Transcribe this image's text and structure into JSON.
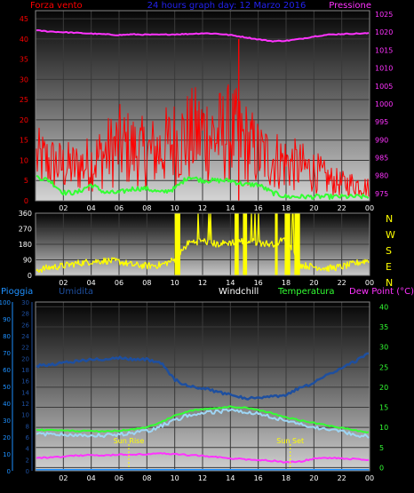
{
  "header": {
    "left_title": "Forza vento",
    "center_title": "24 hours graph day: 12 Marzo 2016",
    "right_title": "Pressione"
  },
  "colors": {
    "wind": "#ff0000",
    "gust": "#33ff33",
    "pressure": "#ff33ff",
    "direction": "#ffff00",
    "humidity": "#1e4f9f",
    "windchill": "#9ed6f5",
    "temperature": "#33ff33",
    "dewpoint": "#ff33ff",
    "rain": "#1e90ff"
  },
  "chart_data": [
    {
      "type": "line",
      "name": "wind-pressure",
      "x_ticks": [
        "02",
        "04",
        "06",
        "08",
        "10",
        "12",
        "14",
        "16",
        "18",
        "20",
        "22",
        "00"
      ],
      "left_ticks": [
        "0",
        "5",
        "10",
        "15",
        "20",
        "25",
        "30",
        "35",
        "40",
        "45"
      ],
      "right_ticks": [
        "975",
        "980",
        "985",
        "990",
        "995",
        "1000",
        "1005",
        "1010",
        "1015",
        "1020",
        "1025"
      ],
      "left_ylim": [
        0,
        47
      ],
      "right_ylim": [
        973,
        1026
      ],
      "series": [
        {
          "key": "wind_mean",
          "hours": [
            0,
            1,
            2,
            3,
            4,
            5,
            6,
            7,
            8,
            9,
            10,
            11,
            12,
            13,
            14,
            15,
            16,
            17,
            18,
            19,
            20,
            21,
            22,
            23,
            24
          ],
          "values": [
            10,
            9,
            8,
            8,
            9,
            11,
            13,
            12,
            11,
            12,
            14,
            15,
            16,
            15,
            16,
            14,
            11,
            10,
            9,
            8,
            7,
            5,
            4,
            4,
            3
          ]
        },
        {
          "key": "gust",
          "hours": [
            0,
            1,
            2,
            3,
            4,
            5,
            6,
            7,
            8,
            9,
            10,
            11,
            12,
            13,
            14,
            15,
            16,
            17,
            18,
            19,
            20,
            21,
            22,
            23,
            24
          ],
          "values": [
            6,
            5,
            2,
            2,
            4,
            2,
            2,
            3,
            3,
            2,
            3,
            6,
            5,
            5,
            5,
            4,
            4,
            2,
            1,
            1,
            1,
            1,
            1,
            1,
            1
          ]
        },
        {
          "key": "pressure",
          "hours": [
            0,
            1,
            2,
            3,
            4,
            5,
            6,
            7,
            8,
            9,
            10,
            11,
            12,
            13,
            14,
            15,
            16,
            17,
            18,
            19,
            20,
            21,
            22,
            23,
            24
          ],
          "values": [
            1020.5,
            1020.2,
            1020.0,
            1019.8,
            1019.6,
            1019.4,
            1019.2,
            1019.4,
            1019.3,
            1019.3,
            1019.4,
            1019.5,
            1019.7,
            1019.6,
            1019.2,
            1018.6,
            1018.0,
            1017.5,
            1017.6,
            1018.1,
            1018.8,
            1019.3,
            1019.5,
            1019.6,
            1019.7
          ]
        }
      ],
      "spikes": [
        {
          "hour": 14.6,
          "value": 40
        }
      ]
    },
    {
      "type": "scatter",
      "name": "wind-direction",
      "x_ticks": [
        "02",
        "04",
        "06",
        "08",
        "10",
        "12",
        "14",
        "16",
        "18",
        "20",
        "22",
        "00"
      ],
      "left_ticks": [
        "0",
        "90",
        "180",
        "270",
        "360"
      ],
      "right_labels": [
        "N",
        "W",
        "S",
        "E",
        "N"
      ],
      "ylim": [
        0,
        360
      ],
      "series": [
        {
          "key": "direction",
          "hours": [
            0,
            1,
            2,
            3,
            4,
            5,
            6,
            7,
            8,
            9,
            10,
            11,
            12,
            13,
            14,
            15,
            16,
            17,
            18,
            19,
            20,
            21,
            22,
            23,
            24
          ],
          "values": [
            30,
            45,
            55,
            70,
            80,
            85,
            80,
            60,
            55,
            60,
            90,
            190,
            200,
            180,
            190,
            200,
            190,
            180,
            210,
            60,
            50,
            40,
            50,
            70,
            90
          ]
        }
      ]
    },
    {
      "type": "line",
      "name": "temp-humidity",
      "labels": {
        "rain": "Pioggia",
        "humidity": "Umidita",
        "windchill": "Windchill",
        "temperature": "Temperatura",
        "dewpoint": "Dew Point (°C)"
      },
      "x_ticks": [
        "02",
        "04",
        "06",
        "08",
        "10",
        "12",
        "14",
        "16",
        "18",
        "20",
        "22",
        "00"
      ],
      "rain_ticks": [
        "0",
        "10",
        "20",
        "30",
        "40",
        "50",
        "60",
        "70",
        "80",
        "90",
        "100"
      ],
      "humidity_ticks": [
        "0",
        "2",
        "4",
        "6",
        "8",
        "10",
        "12",
        "14",
        "16",
        "18",
        "20",
        "22",
        "24",
        "26",
        "28",
        "30"
      ],
      "temp_ticks": [
        "0",
        "5",
        "10",
        "15",
        "20",
        "25",
        "30",
        "35",
        "40"
      ],
      "temp_ylim": [
        -0.8,
        41.2
      ],
      "humidity_ylim": [
        0,
        100
      ],
      "annotations": [
        {
          "text": "Sun Rise",
          "hour": 6.7
        },
        {
          "text": "Sun Set",
          "hour": 18.3
        }
      ],
      "series": [
        {
          "key": "humidity",
          "hours": [
            0,
            1,
            2,
            3,
            4,
            5,
            6,
            7,
            8,
            9,
            10,
            11,
            12,
            13,
            14,
            15,
            16,
            17,
            18,
            19,
            20,
            21,
            22,
            23,
            24
          ],
          "values": [
            62,
            63,
            64,
            65,
            66,
            66,
            67,
            66,
            66,
            64,
            54,
            50,
            49,
            47,
            45,
            43,
            43,
            44,
            45,
            49,
            52,
            57,
            61,
            65,
            70
          ]
        },
        {
          "key": "temperature",
          "hours": [
            0,
            1,
            2,
            3,
            4,
            5,
            6,
            7,
            8,
            9,
            10,
            11,
            12,
            13,
            14,
            15,
            16,
            17,
            18,
            19,
            20,
            21,
            22,
            23,
            24
          ],
          "values": [
            9.4,
            9.3,
            9.2,
            9.1,
            9.1,
            9.0,
            9.2,
            9.5,
            10.0,
            11.3,
            12.9,
            14.1,
            14.5,
            14.8,
            15.2,
            14.9,
            14.3,
            13.5,
            12.5,
            11.8,
            11.2,
            10.5,
            9.9,
            9.2,
            8.8
          ]
        },
        {
          "key": "windchill",
          "hours": [
            0,
            1,
            2,
            3,
            4,
            5,
            6,
            7,
            8,
            9,
            10,
            11,
            12,
            13,
            14,
            15,
            16,
            17,
            18,
            19,
            20,
            21,
            22,
            23,
            24
          ],
          "values": [
            8.8,
            8.7,
            8.6,
            8.5,
            8.5,
            8.4,
            8.6,
            9.0,
            9.5,
            10.8,
            12.2,
            13.5,
            14.0,
            14.3,
            14.7,
            14.4,
            13.8,
            13.0,
            12.0,
            11.3,
            10.5,
            9.9,
            9.3,
            8.6,
            8.2
          ]
        },
        {
          "key": "dewpoint",
          "hours": [
            0,
            1,
            2,
            3,
            4,
            5,
            6,
            7,
            8,
            9,
            10,
            11,
            12,
            13,
            14,
            15,
            16,
            17,
            18,
            19,
            20,
            21,
            22,
            23,
            24
          ],
          "values": [
            2.4,
            2.5,
            2.7,
            3.0,
            3.1,
            3.0,
            3.2,
            3.3,
            3.3,
            3.5,
            3.4,
            3.1,
            2.9,
            2.6,
            2.3,
            2.1,
            1.9,
            1.7,
            1.3,
            1.5,
            2.2,
            2.4,
            2.3,
            2.1,
            1.9
          ]
        },
        {
          "key": "rain",
          "hours": [
            0,
            24
          ],
          "values": [
            0,
            0
          ]
        }
      ]
    }
  ]
}
